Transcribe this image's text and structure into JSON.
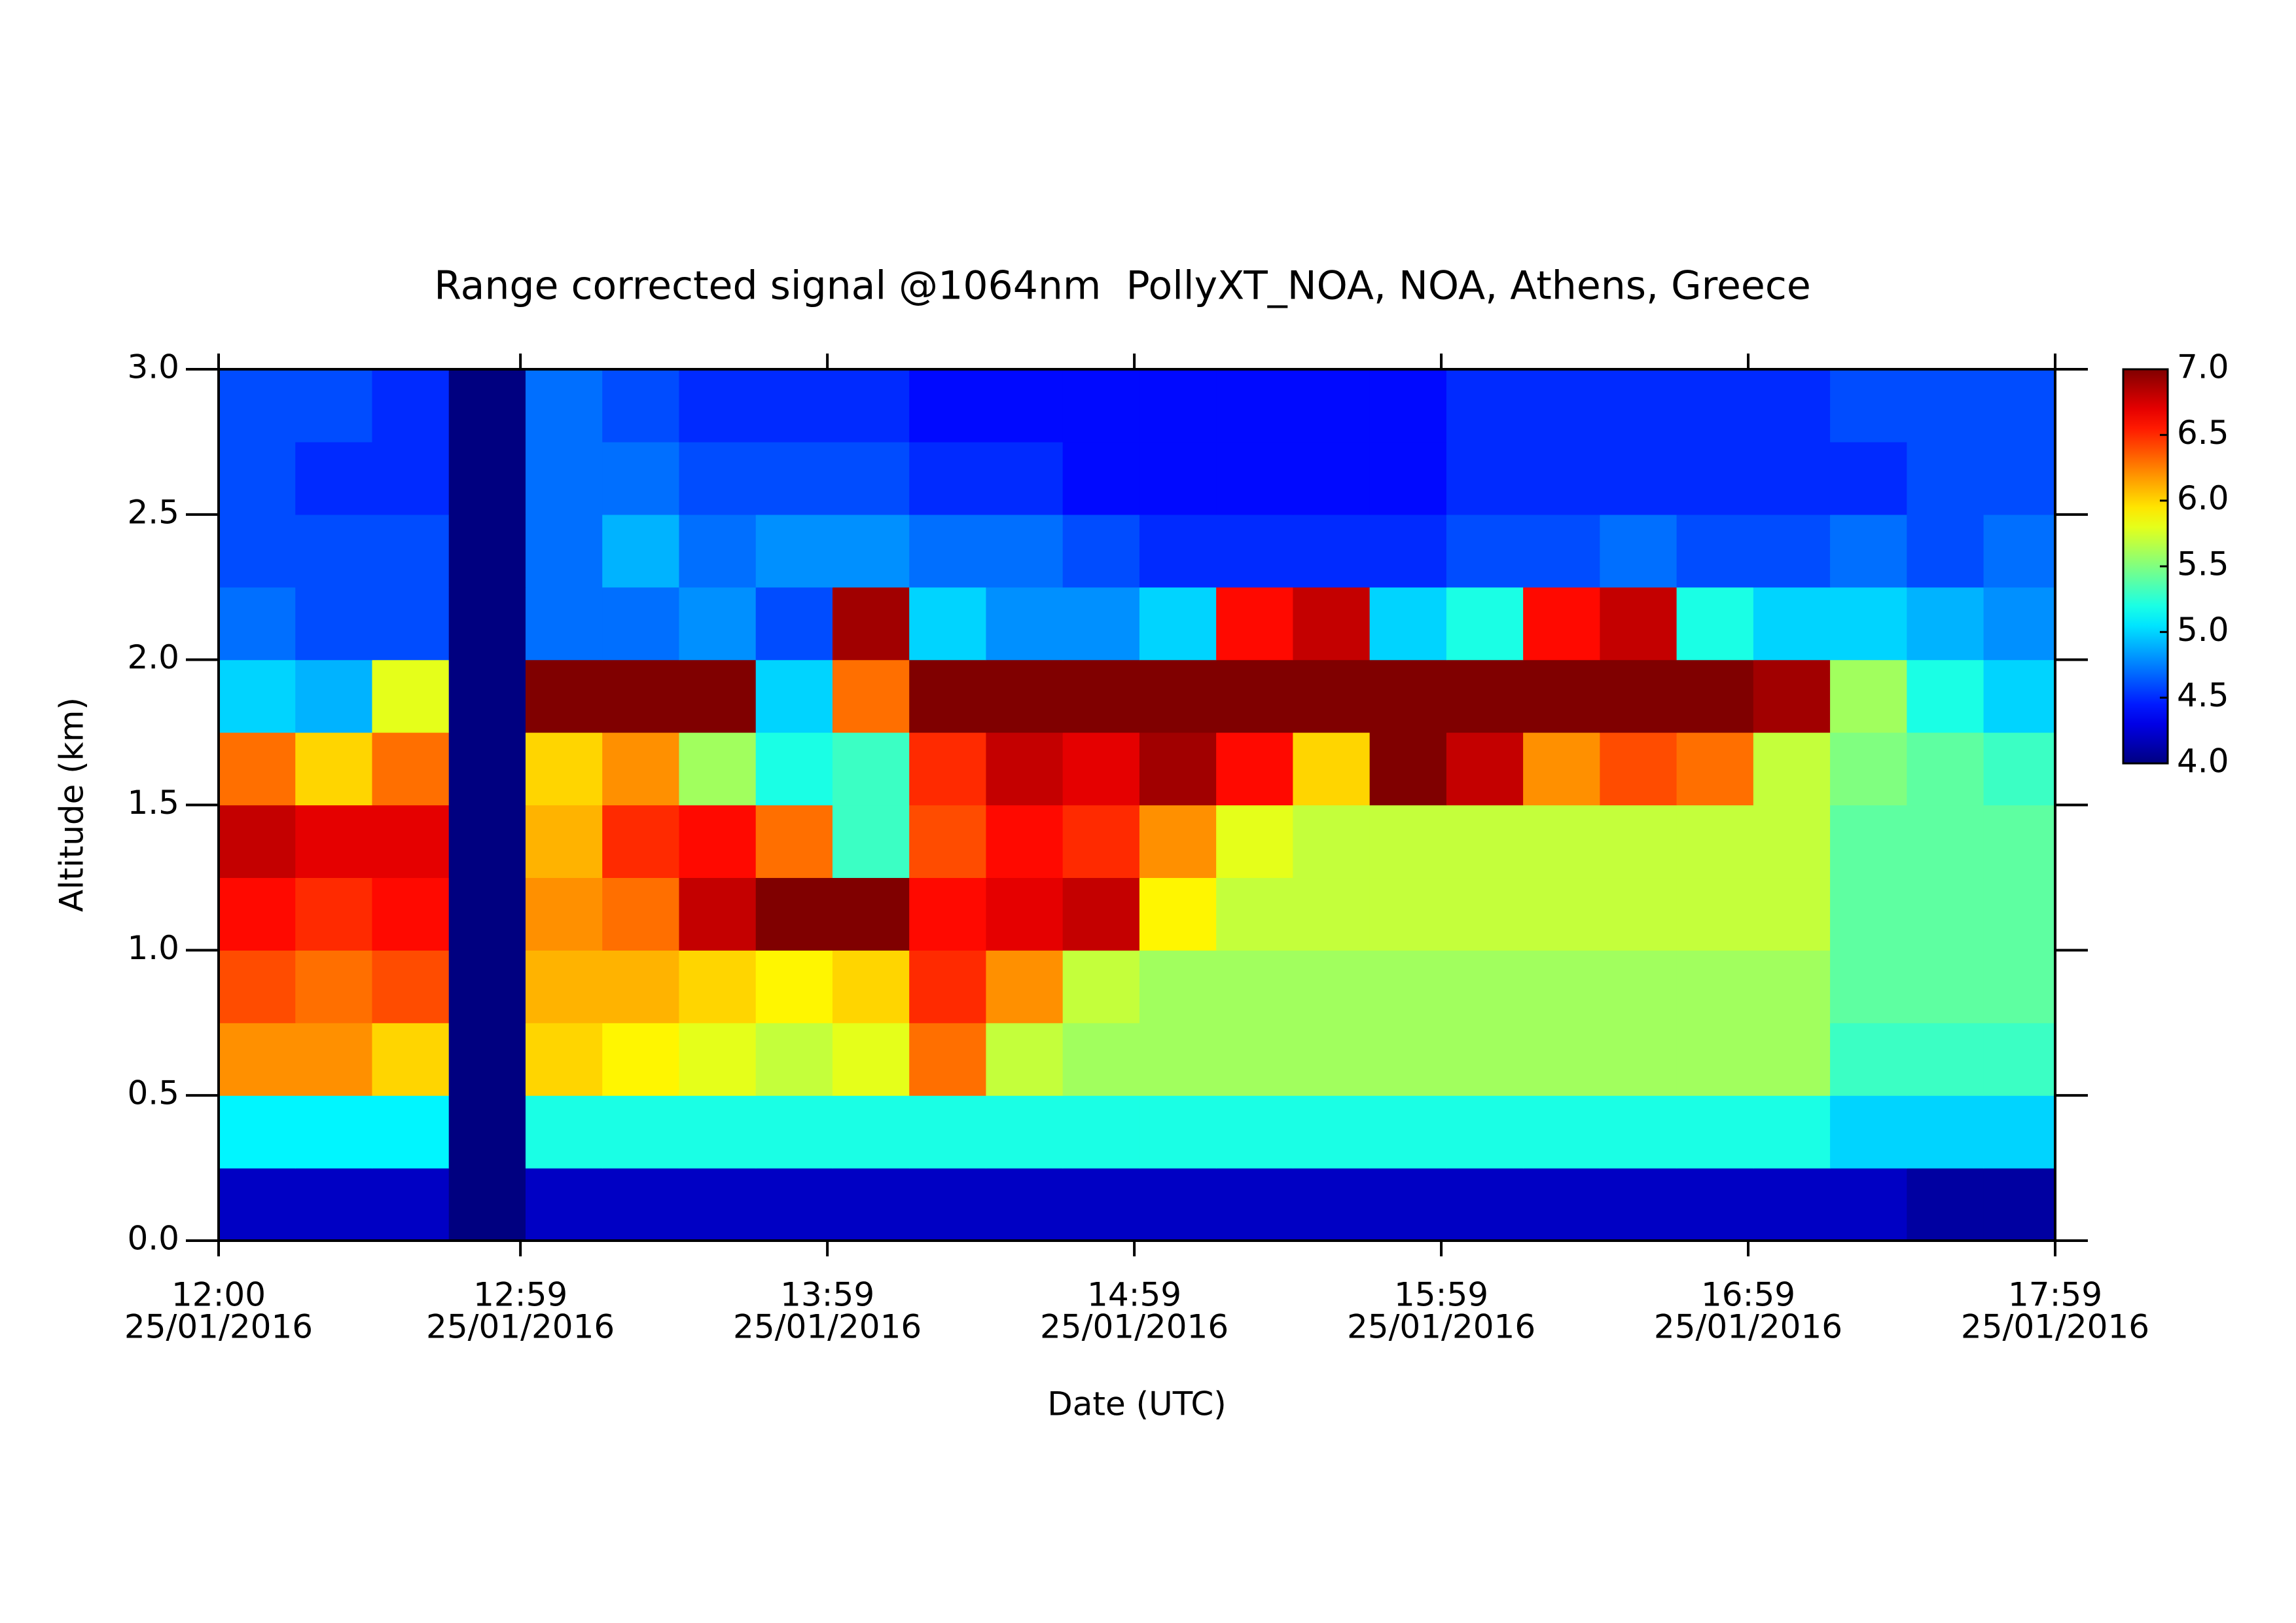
{
  "chart_data": {
    "type": "heatmap",
    "title": "Range corrected signal @1064nm  PollyXT_NOA, NOA, Athens, Greece",
    "xlabel": "Date (UTC)",
    "ylabel": "Altitude (km)",
    "xbins": [
      "2016-01-25T12:00",
      "2016-01-25T12:15",
      "2016-01-25T12:30",
      "2016-01-25T12:45",
      "2016-01-25T13:00",
      "2016-01-25T13:15",
      "2016-01-25T13:30",
      "2016-01-25T13:45",
      "2016-01-25T14:00",
      "2016-01-25T14:15",
      "2016-01-25T14:30",
      "2016-01-25T14:45",
      "2016-01-25T15:00",
      "2016-01-25T15:15",
      "2016-01-25T15:30",
      "2016-01-25T15:45",
      "2016-01-25T16:00",
      "2016-01-25T16:15",
      "2016-01-25T16:30",
      "2016-01-25T16:45",
      "2016-01-25T17:00",
      "2016-01-25T17:15",
      "2016-01-25T17:30",
      "2016-01-25T17:45",
      "2016-01-25T17:59"
    ],
    "ybins": [
      0,
      0.25,
      0.5,
      0.75,
      1.0,
      1.25,
      1.5,
      1.75,
      2.0,
      2.25,
      2.5,
      2.75,
      3.0
    ],
    "z": [
      [
        4.2,
        4.2,
        4.2,
        4.0,
        4.2,
        4.2,
        4.2,
        4.2,
        4.2,
        4.2,
        4.2,
        4.2,
        4.2,
        4.2,
        4.2,
        4.2,
        4.2,
        4.2,
        4.2,
        4.2,
        4.2,
        4.2,
        4.1,
        4.1
      ],
      [
        5.1,
        5.1,
        5.1,
        4.0,
        5.2,
        5.2,
        5.2,
        5.2,
        5.2,
        5.2,
        5.2,
        5.2,
        5.2,
        5.2,
        5.2,
        5.2,
        5.2,
        5.2,
        5.2,
        5.2,
        5.2,
        5.0,
        5.0,
        5.0
      ],
      [
        6.2,
        6.2,
        6.0,
        4.0,
        6.0,
        5.9,
        5.8,
        5.7,
        5.8,
        6.3,
        5.7,
        5.6,
        5.6,
        5.6,
        5.6,
        5.6,
        5.6,
        5.6,
        5.6,
        5.6,
        5.6,
        5.3,
        5.3,
        5.3
      ],
      [
        6.4,
        6.3,
        6.4,
        4.0,
        6.1,
        6.1,
        6.0,
        5.9,
        6.0,
        6.5,
        6.2,
        5.7,
        5.6,
        5.6,
        5.6,
        5.6,
        5.6,
        5.6,
        5.6,
        5.6,
        5.6,
        5.4,
        5.4,
        5.4
      ],
      [
        6.6,
        6.5,
        6.6,
        4.0,
        6.2,
        6.3,
        6.8,
        7.0,
        7.0,
        6.6,
        6.7,
        6.8,
        5.9,
        5.7,
        5.7,
        5.7,
        5.7,
        5.7,
        5.7,
        5.7,
        5.7,
        5.4,
        5.4,
        5.4
      ],
      [
        6.8,
        6.7,
        6.7,
        4.0,
        6.1,
        6.5,
        6.6,
        6.3,
        5.3,
        6.4,
        6.6,
        6.5,
        6.2,
        5.8,
        5.7,
        5.7,
        5.7,
        5.7,
        5.7,
        5.7,
        5.7,
        5.4,
        5.4,
        5.4
      ],
      [
        6.3,
        6.0,
        6.3,
        4.0,
        6.0,
        6.2,
        5.6,
        5.2,
        5.3,
        6.5,
        6.8,
        6.7,
        6.9,
        6.6,
        6.0,
        7.0,
        6.8,
        6.2,
        6.4,
        6.3,
        5.7,
        5.5,
        5.4,
        5.3
      ],
      [
        5.0,
        4.9,
        5.8,
        4.0,
        7.0,
        7.0,
        7.0,
        5.0,
        6.3,
        7.0,
        7.0,
        7.0,
        7.0,
        7.0,
        7.0,
        7.0,
        7.0,
        7.0,
        7.0,
        7.0,
        6.9,
        5.6,
        5.2,
        5.0
      ],
      [
        4.7,
        4.6,
        4.6,
        4.0,
        4.7,
        4.7,
        4.8,
        4.6,
        6.9,
        5.0,
        4.8,
        4.8,
        5.0,
        6.6,
        6.8,
        5.0,
        5.2,
        6.6,
        6.8,
        5.2,
        5.0,
        5.0,
        4.9,
        4.8
      ],
      [
        4.6,
        4.6,
        4.6,
        4.0,
        4.7,
        4.9,
        4.7,
        4.8,
        4.8,
        4.7,
        4.7,
        4.6,
        4.5,
        4.5,
        4.5,
        4.5,
        4.6,
        4.6,
        4.7,
        4.6,
        4.6,
        4.7,
        4.6,
        4.7
      ],
      [
        4.6,
        4.5,
        4.5,
        4.0,
        4.7,
        4.7,
        4.6,
        4.6,
        4.6,
        4.5,
        4.5,
        4.4,
        4.4,
        4.4,
        4.4,
        4.4,
        4.5,
        4.5,
        4.5,
        4.5,
        4.5,
        4.5,
        4.6,
        4.6
      ],
      [
        4.6,
        4.6,
        4.5,
        4.0,
        4.7,
        4.6,
        4.5,
        4.5,
        4.5,
        4.4,
        4.4,
        4.4,
        4.4,
        4.4,
        4.4,
        4.4,
        4.5,
        4.5,
        4.5,
        4.5,
        4.5,
        4.6,
        4.6,
        4.6
      ]
    ],
    "colormap": "jet",
    "xlim": [
      "2016-01-25T12:00",
      "2016-01-25T17:59"
    ],
    "xticks": [
      {
        "value": "2016-01-25T12:00",
        "label": [
          "12:00",
          "25/01/2016"
        ]
      },
      {
        "value": "2016-01-25T12:59",
        "label": [
          "12:59",
          "25/01/2016"
        ]
      },
      {
        "value": "2016-01-25T13:59",
        "label": [
          "13:59",
          "25/01/2016"
        ]
      },
      {
        "value": "2016-01-25T14:59",
        "label": [
          "14:59",
          "25/01/2016"
        ]
      },
      {
        "value": "2016-01-25T15:59",
        "label": [
          "15:59",
          "25/01/2016"
        ]
      },
      {
        "value": "2016-01-25T16:59",
        "label": [
          "16:59",
          "25/01/2016"
        ]
      },
      {
        "value": "2016-01-25T17:59",
        "label": [
          "17:59",
          "25/01/2016"
        ]
      }
    ],
    "ylim": [
      0,
      3.0
    ],
    "yticks": [
      {
        "value": 0,
        "label": "0.0"
      },
      {
        "value": 0.5,
        "label": "0.5"
      },
      {
        "value": 1.0,
        "label": "1.0"
      },
      {
        "value": 1.5,
        "label": "1.5"
      },
      {
        "value": 2.0,
        "label": "2.0"
      },
      {
        "value": 2.5,
        "label": "2.5"
      },
      {
        "value": 3.0,
        "label": "3.0"
      }
    ],
    "zlim": [
      4.0,
      7.0
    ],
    "zticks": [
      {
        "value": 4,
        "label": "4.0"
      },
      {
        "value": 4.5,
        "label": "4.5"
      },
      {
        "value": 5,
        "label": "5.0"
      },
      {
        "value": 5.5,
        "label": "5.5"
      },
      {
        "value": 6,
        "label": "6.0"
      },
      {
        "value": 6.5,
        "label": "6.5"
      },
      {
        "value": 7,
        "label": "7.0"
      }
    ]
  }
}
